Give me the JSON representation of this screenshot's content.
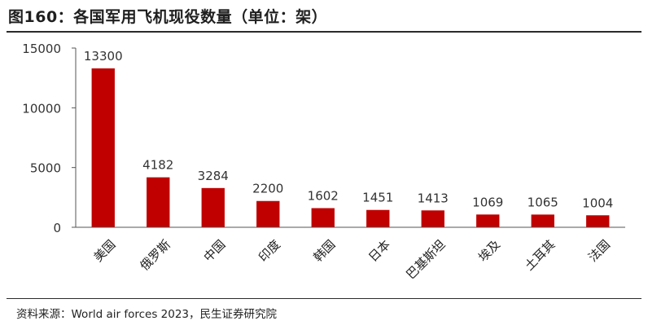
{
  "header": {
    "title": "图160：各国军用飞机现役数量（单位：架）"
  },
  "footer": {
    "source": "资料来源：World air forces 2023，民生证券研究院"
  },
  "chart_data": {
    "type": "bar",
    "title": "图160：各国军用飞机现役数量（单位：架）",
    "xlabel": "",
    "ylabel": "",
    "categories": [
      "美国",
      "俄罗斯",
      "中国",
      "印度",
      "韩国",
      "日本",
      "巴基斯坦",
      "埃及",
      "土耳其",
      "法国"
    ],
    "values": [
      13300,
      4182,
      3284,
      2200,
      1602,
      1451,
      1413,
      1069,
      1065,
      1004
    ],
    "data_labels": [
      "13300",
      "4182",
      "3284",
      "2200",
      "1602",
      "1451",
      "1413",
      "1069",
      "1065",
      "1004"
    ],
    "yticks": [
      0,
      5000,
      10000,
      15000
    ],
    "ytick_labels": [
      "0",
      "5000",
      "10000",
      "15000"
    ],
    "ylim": [
      0,
      15000
    ],
    "grid": false,
    "legend": "none",
    "bar_color": "#C00000"
  }
}
